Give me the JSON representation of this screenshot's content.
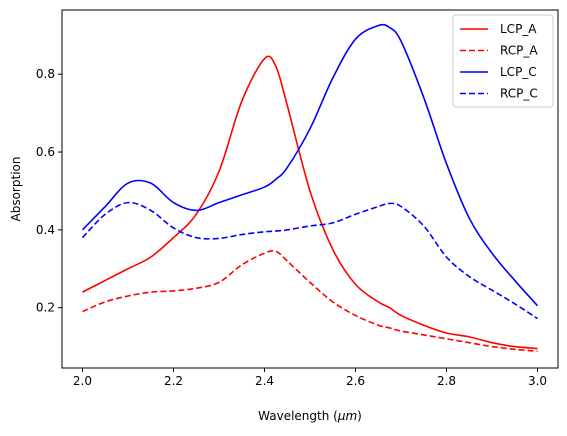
{
  "chart_data": {
    "type": "line",
    "title": "",
    "xlabel_prefix": "Wavelength (",
    "xlabel_unit": "μm",
    "xlabel_suffix": ")",
    "ylabel": "Absorption",
    "xlim": [
      1.955,
      3.045
    ],
    "ylim": [
      0.045,
      0.965
    ],
    "xticks": [
      2.0,
      2.2,
      2.4,
      2.6,
      2.8,
      3.0
    ],
    "xtick_labels": [
      "2.0",
      "2.2",
      "2.4",
      "2.6",
      "2.8",
      "3.0"
    ],
    "yticks": [
      0.2,
      0.4,
      0.6,
      0.8
    ],
    "ytick_labels": [
      "0.2",
      "0.4",
      "0.6",
      "0.8"
    ],
    "grid": false,
    "legend_position": "top-right",
    "x": [
      2.0,
      2.05,
      2.1,
      2.15,
      2.2,
      2.25,
      2.3,
      2.35,
      2.4,
      2.425,
      2.45,
      2.5,
      2.55,
      2.6,
      2.65,
      2.675,
      2.7,
      2.75,
      2.8,
      2.85,
      2.9,
      2.95,
      3.0
    ],
    "series": [
      {
        "name": "LCP_A",
        "color": "#ff0000",
        "dash": "solid",
        "values": [
          0.24,
          0.27,
          0.3,
          0.33,
          0.38,
          0.44,
          0.55,
          0.73,
          0.84,
          0.82,
          0.72,
          0.5,
          0.35,
          0.26,
          0.215,
          0.2,
          0.18,
          0.155,
          0.135,
          0.125,
          0.11,
          0.1,
          0.095
        ]
      },
      {
        "name": "RCP_A",
        "color": "#ff0000",
        "dash": "dashed",
        "values": [
          0.19,
          0.215,
          0.23,
          0.24,
          0.243,
          0.25,
          0.265,
          0.31,
          0.34,
          0.345,
          0.32,
          0.265,
          0.215,
          0.18,
          0.155,
          0.148,
          0.14,
          0.13,
          0.12,
          0.11,
          0.1,
          0.093,
          0.088
        ]
      },
      {
        "name": "LCP_C",
        "color": "#0000ff",
        "dash": "solid",
        "values": [
          0.4,
          0.46,
          0.52,
          0.52,
          0.47,
          0.45,
          0.47,
          0.49,
          0.51,
          0.53,
          0.56,
          0.66,
          0.79,
          0.89,
          0.925,
          0.92,
          0.885,
          0.74,
          0.57,
          0.43,
          0.34,
          0.27,
          0.205
        ]
      },
      {
        "name": "RCP_C",
        "color": "#0000ff",
        "dash": "dashed",
        "values": [
          0.38,
          0.44,
          0.47,
          0.45,
          0.405,
          0.38,
          0.378,
          0.388,
          0.395,
          0.397,
          0.4,
          0.41,
          0.418,
          0.44,
          0.46,
          0.468,
          0.46,
          0.41,
          0.33,
          0.28,
          0.245,
          0.21,
          0.172
        ]
      }
    ]
  }
}
